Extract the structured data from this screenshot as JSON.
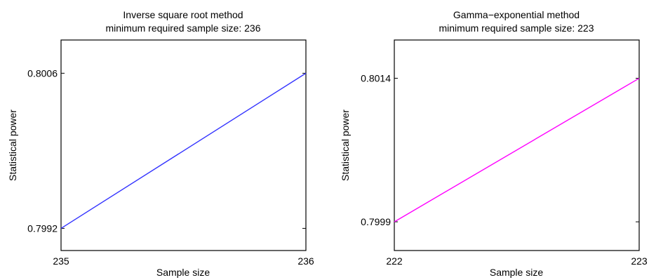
{
  "chart_data": [
    {
      "type": "line",
      "title": "Inverse square root method",
      "subtitle": "minimum required sample size: 236",
      "xlabel": "Sample size",
      "ylabel": "Statistical power",
      "x_ticks": [
        "235",
        "236"
      ],
      "y_ticks": [
        "0.7992",
        "0.8006"
      ],
      "xlim": [
        235,
        236
      ],
      "ylim": [
        0.799,
        0.8009
      ],
      "grid": false,
      "series": [
        {
          "color": "#3333ff",
          "x": [
            235,
            236
          ],
          "y": [
            0.7992,
            0.8006
          ]
        }
      ]
    },
    {
      "type": "line",
      "title": "Gamma−exponential method",
      "subtitle": "minimum required sample size: 223",
      "xlabel": "Sample size",
      "ylabel": "Statistical power",
      "x_ticks": [
        "222",
        "223"
      ],
      "y_ticks": [
        "0.7999",
        "0.8014"
      ],
      "xlim": [
        222,
        223
      ],
      "ylim": [
        0.7996,
        0.8018
      ],
      "grid": false,
      "series": [
        {
          "color": "#ff00ff",
          "x": [
            222,
            223
          ],
          "y": [
            0.7999,
            0.8014
          ]
        }
      ]
    }
  ]
}
